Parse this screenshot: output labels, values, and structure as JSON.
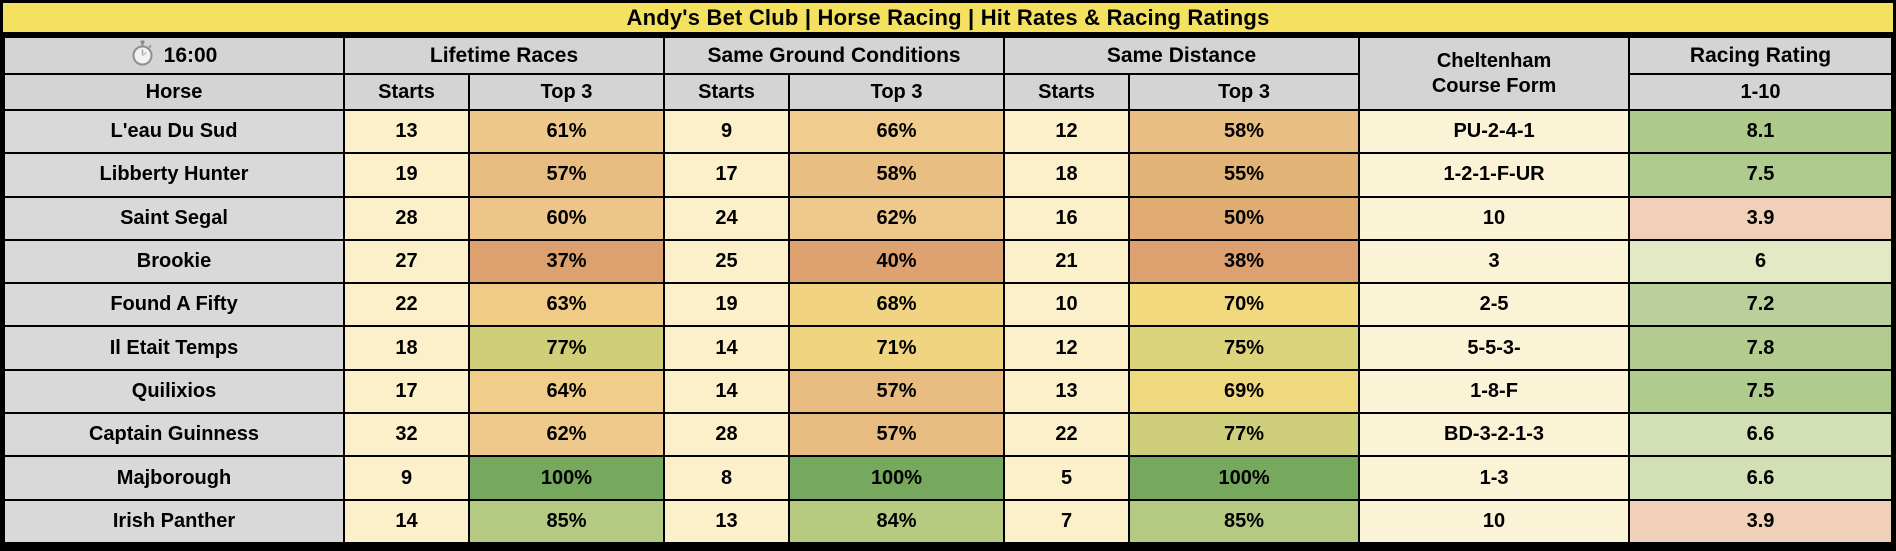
{
  "title": "Andy's Bet Club | Horse Racing | Hit Rates & Racing Ratings",
  "header": {
    "time": "16:00",
    "timer_icon": "stopwatch",
    "horse": "Horse",
    "starts": "Starts",
    "top3": "Top 3",
    "groups": [
      {
        "label": "Lifetime Races"
      },
      {
        "label": "Same Ground Conditions"
      },
      {
        "label": "Same Distance"
      }
    ],
    "course_form_line1": "Cheltenham",
    "course_form_line2": "Course Form",
    "rating": "Racing Rating",
    "rating_scale": "1-10"
  },
  "colors": {
    "title_bg": "#F3E15F",
    "header_bg": "#D4D4D4",
    "horse_bg": "#D9D9D9",
    "starts_bg": "#FBF0CA",
    "form_bg": "#FBF3D6",
    "border": "#000000",
    "rating_high": "#76A95E",
    "rating_low": "#DDA06F"
  },
  "rows": [
    {
      "horse": "L'eau Du Sud",
      "cells": [
        {
          "v": "13"
        },
        {
          "v": "61%",
          "c": "#EEC88B"
        },
        {
          "v": "9"
        },
        {
          "v": "66%",
          "c": "#F0CC8E"
        },
        {
          "v": "12"
        },
        {
          "v": "58%",
          "c": "#E9BE82"
        }
      ],
      "form": "PU-2-4-1",
      "rating": {
        "v": "8.1",
        "c": "#AECA8A"
      }
    },
    {
      "horse": "Libberty Hunter",
      "cells": [
        {
          "v": "19"
        },
        {
          "v": "57%",
          "c": "#E8BC80"
        },
        {
          "v": "17"
        },
        {
          "v": "58%",
          "c": "#E9BE82"
        },
        {
          "v": "18"
        },
        {
          "v": "55%",
          "c": "#E2B377"
        }
      ],
      "form": "1-2-1-F-UR",
      "rating": {
        "v": "7.5",
        "c": "#AFCB8D"
      }
    },
    {
      "horse": "Saint Segal",
      "cells": [
        {
          "v": "28"
        },
        {
          "v": "60%",
          "c": "#EDC588"
        },
        {
          "v": "24"
        },
        {
          "v": "62%",
          "c": "#EFC98C"
        },
        {
          "v": "16"
        },
        {
          "v": "50%",
          "c": "#E0AC72"
        }
      ],
      "form": "10",
      "rating": {
        "v": "3.9",
        "c": "#F0D0B8"
      }
    },
    {
      "horse": "Brookie",
      "cells": [
        {
          "v": "27"
        },
        {
          "v": "37%",
          "c": "#DDA06F"
        },
        {
          "v": "25"
        },
        {
          "v": "40%",
          "c": "#DEA271"
        },
        {
          "v": "21"
        },
        {
          "v": "38%",
          "c": "#DDA06F"
        }
      ],
      "form": "3",
      "rating": {
        "v": "6",
        "c": "#E3E8C5"
      }
    },
    {
      "horse": "Found A Fifty",
      "cells": [
        {
          "v": "22"
        },
        {
          "v": "63%",
          "c": "#EFCB86"
        },
        {
          "v": "19"
        },
        {
          "v": "68%",
          "c": "#F2D382"
        },
        {
          "v": "10"
        },
        {
          "v": "70%",
          "c": "#F3D97E"
        }
      ],
      "form": "2-5",
      "rating": {
        "v": "7.2",
        "c": "#BACF9B"
      }
    },
    {
      "horse": "Il Etait Temps",
      "cells": [
        {
          "v": "18"
        },
        {
          "v": "77%",
          "c": "#CFCF7A"
        },
        {
          "v": "14"
        },
        {
          "v": "71%",
          "c": "#F0D47F"
        },
        {
          "v": "12"
        },
        {
          "v": "75%",
          "c": "#DBD47D"
        }
      ],
      "form": "5-5-3-",
      "rating": {
        "v": "7.8",
        "c": "#B3CB8F"
      }
    },
    {
      "horse": "Quilixios",
      "cells": [
        {
          "v": "17"
        },
        {
          "v": "64%",
          "c": "#F0CD88"
        },
        {
          "v": "14"
        },
        {
          "v": "57%",
          "c": "#E8BC80"
        },
        {
          "v": "13"
        },
        {
          "v": "69%",
          "c": "#EFD97F"
        }
      ],
      "form": "1-8-F",
      "rating": {
        "v": "7.5",
        "c": "#AFCB8D"
      }
    },
    {
      "horse": "Captain Guinness",
      "cells": [
        {
          "v": "32"
        },
        {
          "v": "62%",
          "c": "#EFC98C"
        },
        {
          "v": "28"
        },
        {
          "v": "57%",
          "c": "#E8BC80"
        },
        {
          "v": "22"
        },
        {
          "v": "77%",
          "c": "#CFCF7B"
        }
      ],
      "form": "BD-3-2-1-3",
      "rating": {
        "v": "6.6",
        "c": "#D3DFB5"
      }
    },
    {
      "horse": "Majborough",
      "cells": [
        {
          "v": "9"
        },
        {
          "v": "100%",
          "c": "#76A95E"
        },
        {
          "v": "8"
        },
        {
          "v": "100%",
          "c": "#76A95E"
        },
        {
          "v": "5"
        },
        {
          "v": "100%",
          "c": "#76A95E"
        }
      ],
      "form": "1-3",
      "rating": {
        "v": "6.6",
        "c": "#D3DFB5"
      }
    },
    {
      "horse": "Irish Panther",
      "cells": [
        {
          "v": "14"
        },
        {
          "v": "85%",
          "c": "#B4C982"
        },
        {
          "v": "13"
        },
        {
          "v": "84%",
          "c": "#B7CB80"
        },
        {
          "v": "7"
        },
        {
          "v": "85%",
          "c": "#B4C982"
        }
      ],
      "form": "10",
      "rating": {
        "v": "3.9",
        "c": "#F0D0B8"
      }
    }
  ],
  "chart_data": {
    "type": "table",
    "title": "Andy's Bet Club | Horse Racing | Hit Rates & Racing Ratings",
    "race_time": "16:00",
    "columns": [
      "Horse",
      "Lifetime Races Starts",
      "Lifetime Races Top 3",
      "Same Ground Conditions Starts",
      "Same Ground Conditions Top 3",
      "Same Distance Starts",
      "Same Distance Top 3",
      "Cheltenham Course Form",
      "Racing Rating 1-10"
    ],
    "rows": [
      [
        "L'eau Du Sud",
        13,
        "61%",
        9,
        "66%",
        12,
        "58%",
        "PU-2-4-1",
        8.1
      ],
      [
        "Libberty Hunter",
        19,
        "57%",
        17,
        "58%",
        18,
        "55%",
        "1-2-1-F-UR",
        7.5
      ],
      [
        "Saint Segal",
        28,
        "60%",
        24,
        "62%",
        16,
        "50%",
        "10",
        3.9
      ],
      [
        "Brookie",
        27,
        "37%",
        25,
        "40%",
        21,
        "38%",
        "3",
        6
      ],
      [
        "Found A Fifty",
        22,
        "63%",
        19,
        "68%",
        10,
        "70%",
        "2-5",
        7.2
      ],
      [
        "Il Etait Temps",
        18,
        "77%",
        14,
        "71%",
        12,
        "75%",
        "5-5-3-",
        7.8
      ],
      [
        "Quilixios",
        17,
        "64%",
        14,
        "57%",
        13,
        "69%",
        "1-8-F",
        7.5
      ],
      [
        "Captain Guinness",
        32,
        "62%",
        28,
        "57%",
        22,
        "77%",
        "BD-3-2-1-3",
        6.6
      ],
      [
        "Majborough",
        9,
        "100%",
        8,
        "100%",
        5,
        "100%",
        "1-3",
        6.6
      ],
      [
        "Irish Panther",
        14,
        "85%",
        13,
        "84%",
        7,
        "85%",
        "10",
        3.9
      ]
    ]
  }
}
